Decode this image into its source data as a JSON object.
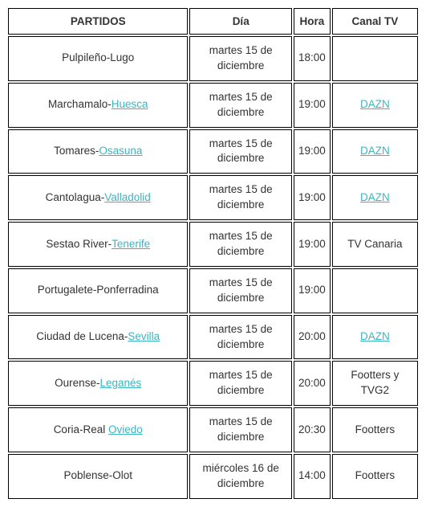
{
  "headers": {
    "partidos": "PARTIDOS",
    "dia": "Día",
    "hora": "Hora",
    "canal": "Canal TV"
  },
  "link_color": "#3ab5c4",
  "text_color": "#333333",
  "border_color": "#000000",
  "rows": [
    {
      "match_pre": "Pulpileño-Lugo",
      "match_link": "",
      "dia": "martes 15 de diciembre",
      "hora": "18:00",
      "canal_text": "",
      "canal_link": ""
    },
    {
      "match_pre": "Marchamalo-",
      "match_link": "Huesca",
      "dia": "martes 15 de diciembre",
      "hora": "19:00",
      "canal_text": "",
      "canal_link": "DAZN"
    },
    {
      "match_pre": "Tomares-",
      "match_link": "Osasuna",
      "dia": "martes 15 de diciembre",
      "hora": "19:00",
      "canal_text": "",
      "canal_link": "DAZN"
    },
    {
      "match_pre": "Cantolagua-",
      "match_link": "Valladolid",
      "dia": "martes 15 de diciembre",
      "hora": "19:00",
      "canal_text": "",
      "canal_link": "DAZN"
    },
    {
      "match_pre": "Sestao River-",
      "match_link": "Tenerife",
      "dia": "martes 15 de diciembre",
      "hora": "19:00",
      "canal_text": "TV Canaria",
      "canal_link": ""
    },
    {
      "match_pre": "Portugalete-Ponferradina",
      "match_link": "",
      "dia": "martes 15 de diciembre",
      "hora": "19:00",
      "canal_text": "",
      "canal_link": ""
    },
    {
      "match_pre": "Ciudad de Lucena-",
      "match_link": "Sevilla",
      "dia": "martes 15 de diciembre",
      "hora": "20:00",
      "canal_text": "",
      "canal_link": "DAZN"
    },
    {
      "match_pre": "Ourense-",
      "match_link": "Leganés",
      "dia": "martes 15 de diciembre",
      "hora": "20:00",
      "canal_text": "Footters y TVG2",
      "canal_link": ""
    },
    {
      "match_pre": "Coria-Real ",
      "match_link": "Oviedo",
      "dia": "martes 15 de diciembre",
      "hora": "20:30",
      "canal_text": "Footters",
      "canal_link": ""
    },
    {
      "match_pre": "Poblense-Olot",
      "match_link": "",
      "dia": "miércoles 16 de diciembre",
      "hora": "14:00",
      "canal_text": "Footters",
      "canal_link": ""
    }
  ]
}
